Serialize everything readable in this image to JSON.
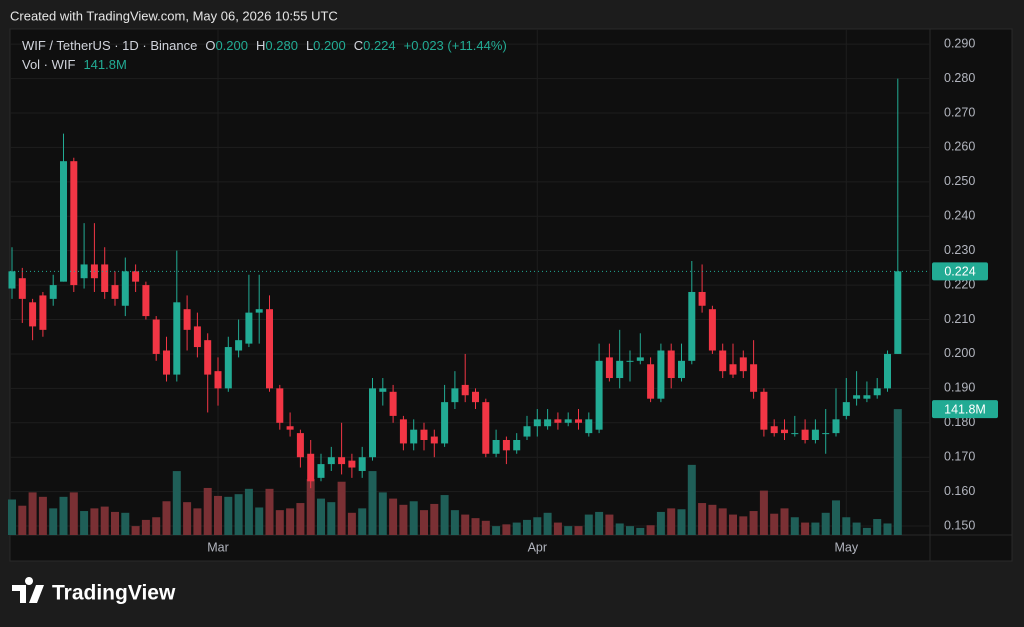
{
  "chart_data": {
    "type": "candlestick",
    "watermark": "Created with TradingView.com, May 06, 2026 10:55 UTC",
    "symbol": "WIF / TetherUS · 1D · Binance",
    "legend_items": [
      {
        "key": "O",
        "value": "0.200"
      },
      {
        "key": "H",
        "value": "0.280"
      },
      {
        "key": "L",
        "value": "0.200"
      },
      {
        "key": "C",
        "value": "0.224"
      }
    ],
    "change": "+0.023 (+11.44%)",
    "volume_title": "Vol · WIF",
    "volume_label": "141.8M",
    "last_price_label": "0.224",
    "brand": "TradingView",
    "categories": [
      null,
      null,
      null,
      null,
      null,
      null,
      null,
      null,
      null,
      null,
      null,
      null,
      null,
      null,
      null,
      null,
      null,
      null,
      null,
      null,
      "Mar",
      null,
      null,
      null,
      null,
      null,
      null,
      null,
      null,
      null,
      null,
      null,
      null,
      null,
      null,
      null,
      null,
      null,
      null,
      null,
      null,
      null,
      null,
      null,
      null,
      null,
      null,
      null,
      null,
      null,
      null,
      "Apr",
      null,
      null,
      null,
      null,
      null,
      null,
      null,
      null,
      null,
      null,
      null,
      null,
      null,
      null,
      null,
      null,
      null,
      null,
      null,
      null,
      null,
      null,
      null,
      null,
      null,
      null,
      null,
      null,
      null,
      "May",
      null,
      null,
      null,
      null,
      null
    ],
    "open": [
      0.219,
      0.222,
      0.215,
      0.217,
      0.216,
      0.221,
      0.256,
      0.222,
      0.226,
      0.226,
      0.22,
      0.214,
      0.224,
      0.22,
      0.21,
      0.201,
      0.194,
      0.213,
      0.208,
      0.204,
      0.195,
      0.19,
      0.201,
      0.203,
      0.212,
      0.213,
      0.19,
      0.179,
      0.177,
      0.171,
      0.164,
      0.168,
      0.17,
      0.169,
      0.166,
      0.17,
      0.189,
      0.189,
      0.181,
      0.174,
      0.178,
      0.176,
      0.174,
      0.186,
      0.191,
      0.189,
      0.186,
      0.171,
      0.175,
      0.172,
      0.176,
      0.179,
      0.179,
      0.181,
      0.18,
      0.181,
      0.177,
      0.178,
      0.199,
      0.193,
      0.198,
      0.198,
      0.197,
      0.187,
      0.201,
      0.193,
      0.198,
      0.218,
      0.213,
      0.201,
      0.197,
      0.199,
      0.197,
      0.189,
      0.179,
      0.178,
      0.177,
      0.178,
      0.175,
      0.177,
      0.177,
      0.182,
      0.187,
      0.187,
      0.188,
      0.19,
      0.2
    ],
    "high": [
      0.231,
      0.225,
      0.216,
      0.218,
      0.223,
      0.264,
      0.257,
      0.238,
      0.238,
      0.231,
      0.224,
      0.228,
      0.226,
      0.221,
      0.211,
      0.205,
      0.23,
      0.217,
      0.212,
      0.206,
      0.199,
      0.205,
      0.21,
      0.223,
      0.223,
      0.217,
      0.191,
      0.183,
      0.178,
      0.175,
      0.171,
      0.173,
      0.18,
      0.171,
      0.173,
      0.193,
      0.193,
      0.191,
      0.182,
      0.181,
      0.18,
      0.178,
      0.191,
      0.195,
      0.2,
      0.19,
      0.187,
      0.178,
      0.176,
      0.177,
      0.182,
      0.184,
      0.184,
      0.183,
      0.183,
      0.184,
      0.183,
      0.203,
      0.203,
      0.207,
      0.201,
      0.206,
      0.199,
      0.203,
      0.203,
      0.203,
      0.227,
      0.226,
      0.214,
      0.203,
      0.203,
      0.201,
      0.204,
      0.19,
      0.181,
      0.181,
      0.182,
      0.181,
      0.181,
      0.184,
      0.19,
      0.193,
      0.195,
      0.192,
      0.193,
      0.201,
      0.28
    ],
    "low": [
      0.216,
      0.209,
      0.204,
      0.205,
      0.214,
      0.221,
      0.218,
      0.219,
      0.218,
      0.216,
      0.214,
      0.211,
      0.218,
      0.21,
      0.198,
      0.192,
      0.192,
      0.201,
      0.199,
      0.183,
      0.185,
      0.189,
      0.199,
      0.202,
      0.203,
      0.189,
      0.178,
      0.176,
      0.167,
      0.161,
      0.163,
      0.166,
      0.165,
      0.164,
      0.164,
      0.169,
      0.185,
      0.18,
      0.172,
      0.172,
      0.172,
      0.17,
      0.173,
      0.184,
      0.186,
      0.184,
      0.17,
      0.17,
      0.168,
      0.171,
      0.175,
      0.176,
      0.178,
      0.178,
      0.179,
      0.178,
      0.176,
      0.177,
      0.192,
      0.19,
      0.192,
      0.197,
      0.186,
      0.186,
      0.19,
      0.192,
      0.197,
      0.212,
      0.2,
      0.193,
      0.193,
      0.193,
      0.187,
      0.176,
      0.176,
      0.175,
      0.176,
      0.174,
      0.174,
      0.171,
      0.176,
      0.181,
      0.185,
      0.186,
      0.187,
      0.189,
      0.2
    ],
    "close": [
      0.224,
      0.216,
      0.208,
      0.207,
      0.22,
      0.256,
      0.22,
      0.226,
      0.222,
      0.218,
      0.216,
      0.224,
      0.221,
      0.211,
      0.2,
      0.194,
      0.215,
      0.207,
      0.202,
      0.194,
      0.19,
      0.202,
      0.204,
      0.212,
      0.213,
      0.19,
      0.18,
      0.178,
      0.17,
      0.163,
      0.168,
      0.17,
      0.168,
      0.167,
      0.17,
      0.19,
      0.19,
      0.182,
      0.174,
      0.178,
      0.175,
      0.174,
      0.186,
      0.19,
      0.188,
      0.186,
      0.171,
      0.175,
      0.172,
      0.175,
      0.179,
      0.181,
      0.181,
      0.18,
      0.181,
      0.18,
      0.181,
      0.198,
      0.193,
      0.198,
      0.198,
      0.199,
      0.187,
      0.201,
      0.193,
      0.198,
      0.218,
      0.214,
      0.201,
      0.195,
      0.194,
      0.195,
      0.189,
      0.178,
      0.177,
      0.177,
      0.177,
      0.175,
      0.178,
      0.177,
      0.181,
      0.186,
      0.188,
      0.188,
      0.19,
      0.2,
      0.224
    ],
    "volume": [
      40,
      33,
      48,
      43,
      30,
      43,
      48,
      27,
      30,
      32,
      26,
      25,
      10,
      17,
      20,
      38,
      72,
      37,
      30,
      53,
      44,
      43,
      46,
      52,
      31,
      52,
      28,
      30,
      36,
      63,
      41,
      37,
      60,
      25,
      30,
      72,
      48,
      41,
      34,
      38,
      28,
      35,
      45,
      28,
      23,
      19,
      16,
      10,
      12,
      14,
      17,
      20,
      25,
      14,
      10,
      10,
      23,
      26,
      23,
      13,
      10,
      8,
      11,
      26,
      30,
      29,
      79,
      36,
      34,
      30,
      23,
      21,
      27,
      50,
      24,
      30,
      20,
      14,
      14,
      25,
      39,
      20,
      14,
      8,
      18,
      13,
      141.8
    ],
    "ylim": [
      0.1474,
      0.2944
    ],
    "yticks": [
      {
        "value": 0.15,
        "label": "0.150"
      },
      {
        "value": 0.16,
        "label": "0.160"
      },
      {
        "value": 0.17,
        "label": "0.170"
      },
      {
        "value": 0.18,
        "label": "0.180"
      },
      {
        "value": 0.19,
        "label": "0.190"
      },
      {
        "value": 0.2,
        "label": "0.200"
      },
      {
        "value": 0.21,
        "label": "0.210"
      },
      {
        "value": 0.22,
        "label": "0.220"
      },
      {
        "value": 0.23,
        "label": "0.230"
      },
      {
        "value": 0.24,
        "label": "0.240"
      },
      {
        "value": 0.25,
        "label": "0.250"
      },
      {
        "value": 0.26,
        "label": "0.260"
      },
      {
        "value": 0.27,
        "label": "0.270"
      },
      {
        "value": 0.28,
        "label": "0.280"
      },
      {
        "value": 0.29,
        "label": "0.290"
      }
    ],
    "volume_lim": [
      0,
      570
    ],
    "grid": true,
    "up_color": "#22ab94",
    "down_color": "#f23645",
    "volume_up_color": "#1f5f58",
    "volume_down_color": "#7a3034"
  }
}
